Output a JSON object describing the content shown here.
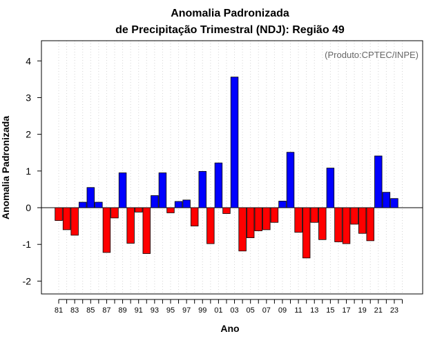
{
  "chart_data": {
    "type": "bar",
    "title": "Anomalia Padronizada",
    "subtitle": "de Precipitação Trimestral (NDJ): Região 49",
    "xlabel": "Ano",
    "ylabel": "Anomalia Padronizada",
    "credit": "(Produto:CPTEC/INPE)",
    "ylim": [
      -2.35,
      4.55
    ],
    "yticks": [
      -2,
      -1,
      0,
      1,
      2,
      3,
      4
    ],
    "grid": true,
    "colors": {
      "positive": "#0000ff",
      "negative": "#ff0000",
      "zero_line": "#000000",
      "grid": "#d3d3d3"
    },
    "x_tick_labels": [
      "81",
      "83",
      "85",
      "87",
      "89",
      "91",
      "93",
      "95",
      "97",
      "99",
      "01",
      "03",
      "05",
      "07",
      "09",
      "11",
      "13",
      "15",
      "17",
      "19",
      "21",
      "23"
    ],
    "years": [
      1981,
      1982,
      1983,
      1984,
      1985,
      1986,
      1987,
      1988,
      1989,
      1990,
      1991,
      1992,
      1993,
      1994,
      1995,
      1996,
      1997,
      1998,
      1999,
      2000,
      2001,
      2002,
      2003,
      2004,
      2005,
      2006,
      2007,
      2008,
      2009,
      2010,
      2011,
      2012,
      2013,
      2014,
      2015,
      2016,
      2017,
      2018,
      2019,
      2020,
      2021,
      2022,
      2023,
      2024
    ],
    "values": [
      -0.35,
      -0.6,
      -0.75,
      0.15,
      0.55,
      0.15,
      -1.22,
      -0.28,
      0.95,
      -0.97,
      -0.12,
      -1.25,
      0.33,
      0.95,
      -0.14,
      0.17,
      0.21,
      -0.5,
      0.99,
      -0.98,
      1.22,
      -0.16,
      3.56,
      -1.18,
      -0.82,
      -0.63,
      -0.6,
      -0.4,
      0.18,
      1.51,
      -0.67,
      -1.37,
      -0.4,
      -0.87,
      1.08,
      -0.93,
      -0.98,
      -0.45,
      -0.7,
      -0.9,
      1.41,
      0.42,
      0.25,
      null
    ]
  }
}
